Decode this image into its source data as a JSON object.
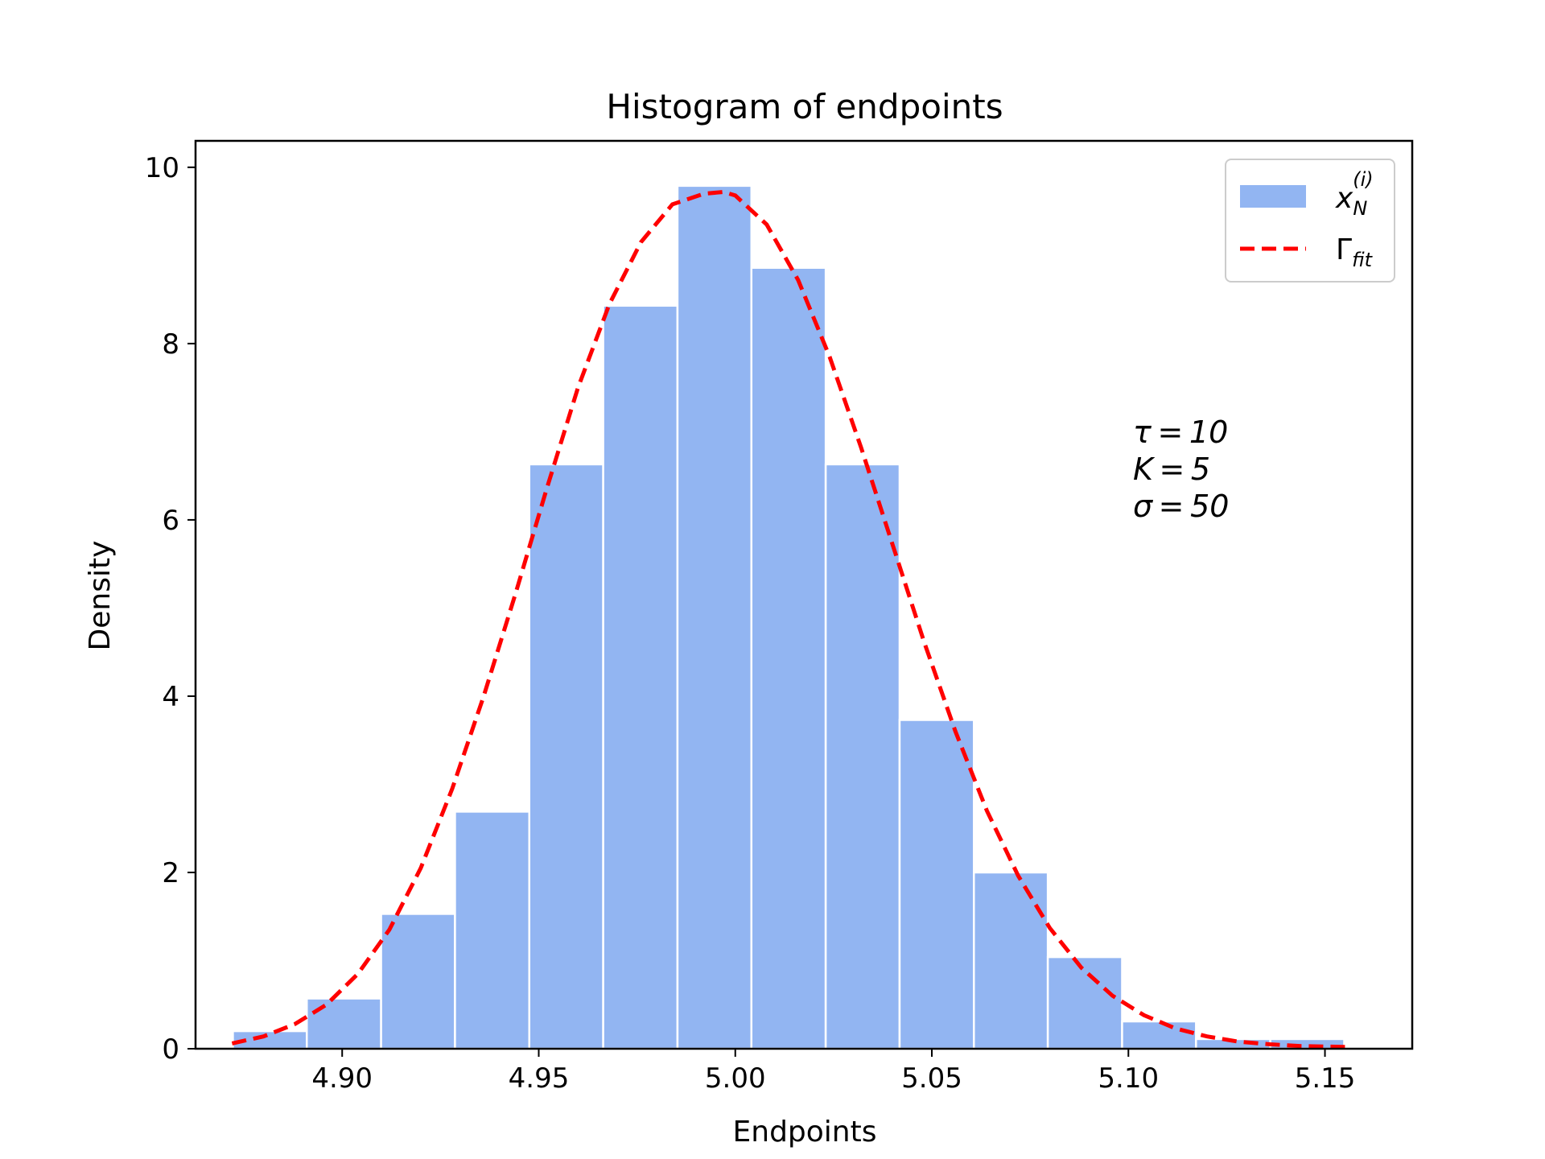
{
  "chart_data": {
    "type": "bar",
    "title": "Histogram of endpoints",
    "xlabel": "Endpoints",
    "ylabel": "Density",
    "xlim": [
      4.8627,
      5.1722
    ],
    "ylim": [
      0,
      10.3
    ],
    "xticks": [
      4.9,
      4.95,
      5.0,
      5.05,
      5.1,
      5.15
    ],
    "xtick_labels": [
      "4.90",
      "4.95",
      "5.00",
      "5.05",
      "5.10",
      "5.15"
    ],
    "yticks": [
      0,
      2,
      4,
      6,
      8,
      10
    ],
    "ytick_labels": [
      "0",
      "2",
      "4",
      "6",
      "8",
      "10"
    ],
    "grid": false,
    "legend_position": "top-right",
    "bin_edges": [
      4.8722,
      4.891,
      4.9099,
      4.9287,
      4.9476,
      4.9664,
      4.9853,
      5.0041,
      5.023,
      5.0418,
      5.0607,
      5.0795,
      5.0984,
      5.1172,
      5.1361,
      5.1549
    ],
    "series": [
      {
        "name": "x_N^(i)",
        "legend_base": "x",
        "legend_sub": "N",
        "legend_sup": "(i)",
        "kind": "histogram",
        "color": "#6495ed",
        "values": [
          0.2,
          0.57,
          1.53,
          2.69,
          6.63,
          8.43,
          9.79,
          8.86,
          6.63,
          3.73,
          2.0,
          1.04,
          0.31,
          0.11,
          0.11
        ]
      },
      {
        "name": "Γ_fit",
        "legend_base": "Γ",
        "legend_sub": "fit",
        "kind": "density-fit",
        "color": "#ff0000",
        "style": "dashed",
        "x": [
          4.872,
          4.88,
          4.888,
          4.896,
          4.904,
          4.912,
          4.92,
          4.928,
          4.936,
          4.944,
          4.952,
          4.96,
          4.968,
          4.976,
          4.984,
          4.992,
          4.997,
          5.0,
          5.008,
          5.016,
          5.024,
          5.032,
          5.04,
          5.048,
          5.056,
          5.064,
          5.072,
          5.08,
          5.088,
          5.096,
          5.104,
          5.112,
          5.12,
          5.128,
          5.136,
          5.144,
          5.156
        ],
        "y": [
          0.06,
          0.14,
          0.28,
          0.5,
          0.85,
          1.35,
          2.05,
          2.95,
          4.0,
          5.15,
          6.35,
          7.5,
          8.45,
          9.15,
          9.58,
          9.7,
          9.72,
          9.68,
          9.35,
          8.72,
          7.85,
          6.82,
          5.72,
          4.62,
          3.6,
          2.7,
          1.96,
          1.37,
          0.92,
          0.6,
          0.38,
          0.23,
          0.14,
          0.08,
          0.05,
          0.03,
          0.02
        ]
      }
    ],
    "annotations": [
      {
        "symbol": "τ",
        "value": "10"
      },
      {
        "symbol": "K",
        "value": "5"
      },
      {
        "symbol": "σ",
        "value": "50"
      }
    ]
  }
}
